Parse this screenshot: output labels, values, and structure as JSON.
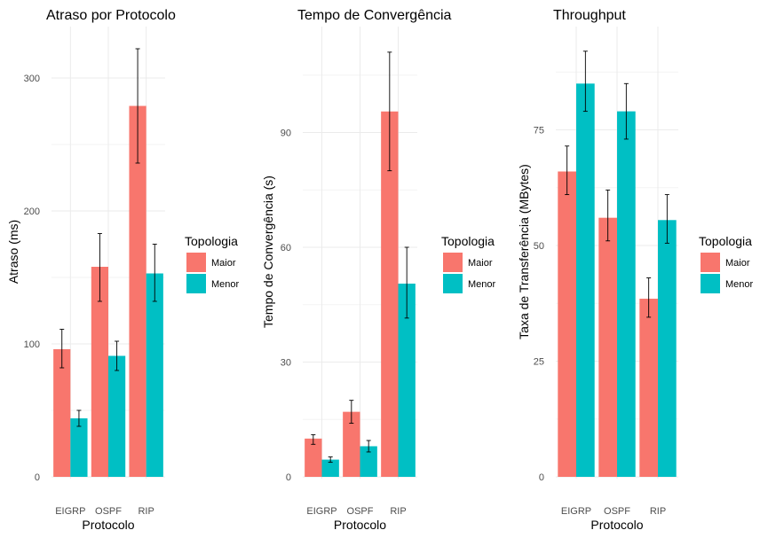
{
  "chart_data": [
    {
      "type": "bar",
      "title": "Atraso por Protocolo",
      "xlabel": "Protocolo",
      "ylabel": "Atraso (ms)",
      "categories": [
        "EIGRP",
        "OSPF",
        "RIP"
      ],
      "ylim": [
        0,
        330
      ],
      "yticks": [
        0,
        100,
        200,
        300
      ],
      "legend": {
        "title": "Topologia",
        "placement": "right"
      },
      "series": [
        {
          "name": "Maior",
          "color": "#F8766D",
          "values": [
            96,
            158,
            279
          ],
          "err_low": [
            82,
            132,
            236
          ],
          "err_high": [
            111,
            183,
            322
          ]
        },
        {
          "name": "Menor",
          "color": "#00BFC4",
          "values": [
            44,
            91,
            153
          ],
          "err_low": [
            38,
            80,
            132
          ],
          "err_high": [
            50,
            102,
            175
          ]
        }
      ]
    },
    {
      "type": "bar",
      "title": "Tempo de Convergência",
      "xlabel": "Protocolo",
      "ylabel": "Tempo de Convergência (s)",
      "categories": [
        "EIGRP",
        "OSPF",
        "RIP"
      ],
      "ylim": [
        0,
        115
      ],
      "yticks": [
        0,
        30,
        60,
        90
      ],
      "legend": {
        "title": "Topologia",
        "placement": "right"
      },
      "series": [
        {
          "name": "Maior",
          "color": "#F8766D",
          "values": [
            10,
            17,
            95.5
          ],
          "err_low": [
            8.5,
            14,
            80
          ],
          "err_high": [
            11,
            20,
            111
          ]
        },
        {
          "name": "Menor",
          "color": "#00BFC4",
          "values": [
            4.5,
            8,
            50.5
          ],
          "err_low": [
            3.8,
            6.5,
            41.5
          ],
          "err_high": [
            5.2,
            9.5,
            60
          ]
        }
      ]
    },
    {
      "type": "bar",
      "title": "Throughput",
      "xlabel": "Protocolo",
      "ylabel": "Taxa de Transferência (MBytes)",
      "categories": [
        "EIGRP",
        "OSPF",
        "RIP"
      ],
      "ylim": [
        0,
        92
      ],
      "yticks": [
        0,
        25,
        50,
        75
      ],
      "legend": {
        "title": "Topologia",
        "placement": "right"
      },
      "series": [
        {
          "name": "Maior",
          "color": "#F8766D",
          "values": [
            66,
            56,
            38.5
          ],
          "err_low": [
            61,
            51,
            34.5
          ],
          "err_high": [
            71.5,
            62,
            43
          ]
        },
        {
          "name": "Menor",
          "color": "#00BFC4",
          "values": [
            85,
            79,
            55.5
          ],
          "err_low": [
            79,
            73,
            50.5
          ],
          "err_high": [
            92,
            85,
            61
          ]
        }
      ]
    }
  ]
}
